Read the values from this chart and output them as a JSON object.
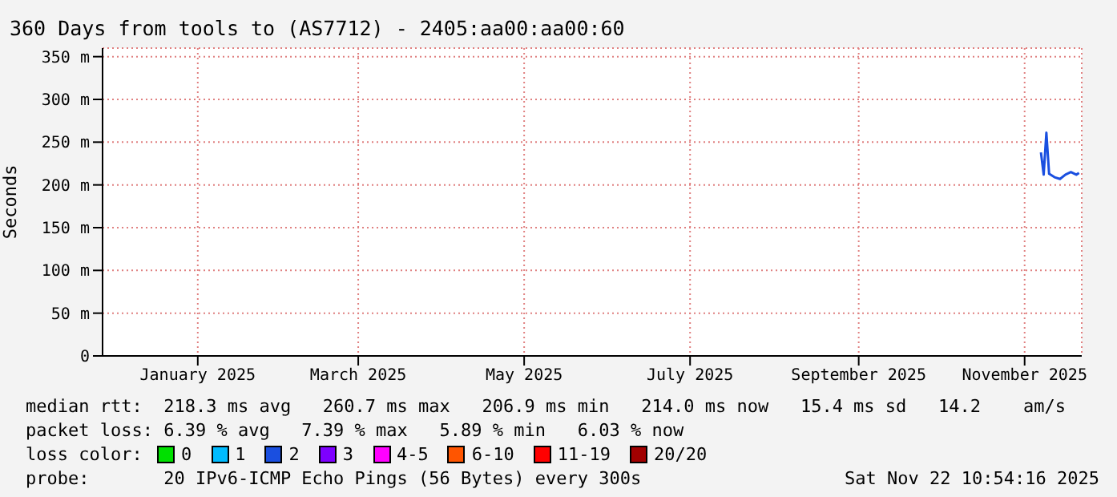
{
  "chart_data": {
    "type": "line",
    "title": "360 Days from tools to (AS7712) - 2405:aa00:aa00:60",
    "ylabel": "Seconds",
    "x": [
      "2025-11-07",
      "2025-11-08",
      "2025-11-09",
      "2025-11-10",
      "2025-11-12",
      "2025-11-14",
      "2025-11-16",
      "2025-11-18",
      "2025-11-20",
      "2025-11-21"
    ],
    "series": [
      {
        "color": "#1a4fe0",
        "values": [
          238,
          212,
          261,
          213,
          209,
          207,
          212,
          215,
          212,
          214
        ]
      }
    ],
    "xlim": [
      "2024-11-27",
      "2025-11-22"
    ],
    "xticks": [
      {
        "value": "2025-01-01",
        "label": "January 2025"
      },
      {
        "value": "2025-03-01",
        "label": "March 2025"
      },
      {
        "value": "2025-05-01",
        "label": "May 2025"
      },
      {
        "value": "2025-07-01",
        "label": "July 2025"
      },
      {
        "value": "2025-09-01",
        "label": "September 2025"
      },
      {
        "value": "2025-11-01",
        "label": "November 2025"
      }
    ],
    "ylim": [
      0,
      360
    ],
    "yticks": [
      0,
      {
        "value": 50,
        "label": "50 m"
      },
      {
        "value": 100,
        "label": "100 m"
      },
      {
        "value": 150,
        "label": "150 m"
      },
      {
        "value": 200,
        "label": "200 m"
      },
      {
        "value": 250,
        "label": "250 m"
      },
      {
        "value": 300,
        "label": "300 m"
      },
      {
        "value": 350,
        "label": "350 m"
      }
    ],
    "grid": true,
    "marker": "none",
    "line_style": "solid",
    "annotations": [
      "median rtt:  218.3 ms avg   260.7 ms max   206.9 ms min   214.0 ms now   15.4 ms sd   14.2    am/s",
      "packet loss: 6.39 % avg   7.39 % max   5.89 % min   6.03 % now",
      "loss color:",
      "0",
      "1",
      "2",
      "3",
      "4-5",
      "6-10",
      "11-19",
      "20/20",
      "probe:       20 IPv6-ICMP Echo Pings (56 Bytes) every 300s",
      "Sat Nov 22 10:54:16 2025"
    ]
  }
}
